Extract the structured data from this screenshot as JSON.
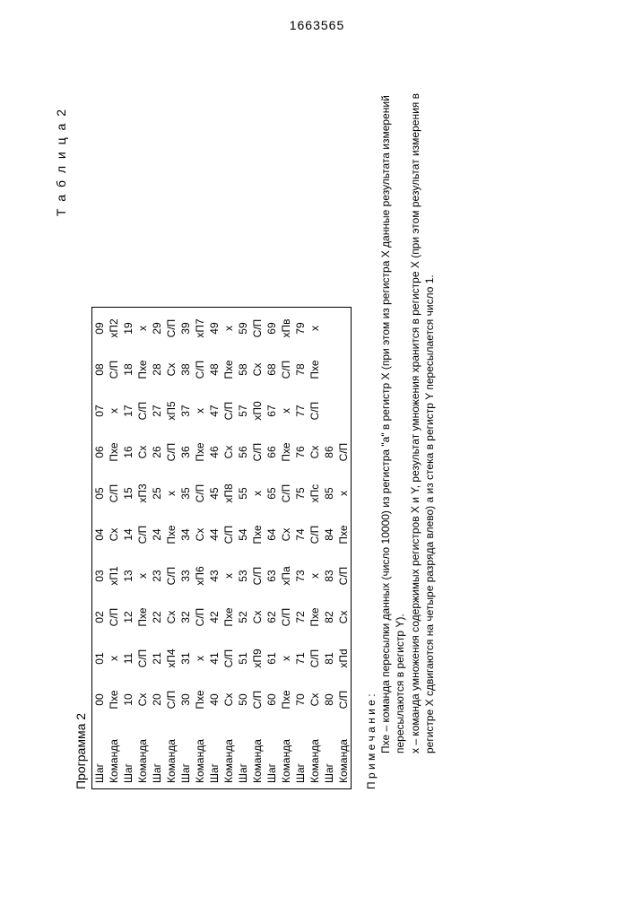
{
  "doc_number": "1663565",
  "program_label": "Программа 2",
  "table_caption": "Т а б л и ц а  2",
  "row_label_step": "Шаг",
  "row_label_cmd": "Команда",
  "rows": [
    {
      "steps": [
        "00",
        "01",
        "02",
        "03",
        "04",
        "05",
        "06",
        "07",
        "08",
        "09"
      ],
      "cmds": [
        "Пхе",
        "х",
        "С/П",
        "хП1",
        "Сх",
        "С/П",
        "Пхе",
        "х",
        "С/П",
        "хП2"
      ]
    },
    {
      "steps": [
        "10",
        "11",
        "12",
        "13",
        "14",
        "15",
        "16",
        "17",
        "18",
        "19"
      ],
      "cmds": [
        "Сх",
        "С/П",
        "Пхе",
        "х",
        "С/П",
        "хП3",
        "Сх",
        "С/П",
        "Пхе",
        "х"
      ]
    },
    {
      "steps": [
        "20",
        "21",
        "22",
        "23",
        "24",
        "25",
        "26",
        "27",
        "28",
        "29"
      ],
      "cmds": [
        "С/П",
        "хП4",
        "Сх",
        "С/П",
        "Пхе",
        "х",
        "С/П",
        "хП5",
        "Сх",
        "С/П"
      ]
    },
    {
      "steps": [
        "30",
        "31",
        "32",
        "33",
        "34",
        "35",
        "36",
        "37",
        "38",
        "39"
      ],
      "cmds": [
        "Пхе",
        "х",
        "С/П",
        "хП6",
        "Сх",
        "С/П",
        "Пхе",
        "х",
        "С/П",
        "хП7"
      ]
    },
    {
      "steps": [
        "40",
        "41",
        "42",
        "43",
        "44",
        "45",
        "46",
        "47",
        "48",
        "49"
      ],
      "cmds": [
        "Сх",
        "С/П",
        "Пхе",
        "х",
        "С/П",
        "хП8",
        "Сх",
        "С/П",
        "Пхе",
        "х"
      ]
    },
    {
      "steps": [
        "50",
        "51",
        "52",
        "53",
        "54",
        "55",
        "56",
        "57",
        "58",
        "59"
      ],
      "cmds": [
        "С/П",
        "хП9",
        "Сх",
        "С/П",
        "Пхе",
        "х",
        "С/П",
        "хП0",
        "Сх",
        "С/П"
      ]
    },
    {
      "steps": [
        "60",
        "61",
        "62",
        "63",
        "64",
        "65",
        "66",
        "67",
        "68",
        "69"
      ],
      "cmds": [
        "Пхе",
        "х",
        "С/П",
        "хПа",
        "Сх",
        "С/П",
        "Пхе",
        "х",
        "С/П",
        "хПв"
      ]
    },
    {
      "steps": [
        "70",
        "71",
        "72",
        "73",
        "74",
        "75",
        "76",
        "77",
        "78",
        "79"
      ],
      "cmds": [
        "Сх",
        "С/П",
        "Пхе",
        "х",
        "С/П",
        "хПс",
        "Сх",
        "С/П",
        "Пхе",
        "х"
      ]
    },
    {
      "steps": [
        "80",
        "81",
        "82",
        "83",
        "84",
        "85",
        "86",
        "",
        "",
        ""
      ],
      "cmds": [
        "С/П",
        "хПd",
        "Сх",
        "С/П",
        "Пхе",
        "х",
        "С/П",
        "",
        "",
        ""
      ]
    }
  ],
  "footnote_title": "П р и м е ч а н и е :",
  "footnote_line1": "Пхе – команда пересылки данных (число 10000) из регистра \"a\" в регистр X (при этом из регистра X данные результата измерений пересылаются в регистр Y).",
  "footnote_line2": "х – команда умножения содержимых регистров X и Y, результат умножения хранится в регистре X (при этом результат измерения в регистре X сдвигаются на четыре разряда влево) а из стека в регистр Y пересылается число 1."
}
